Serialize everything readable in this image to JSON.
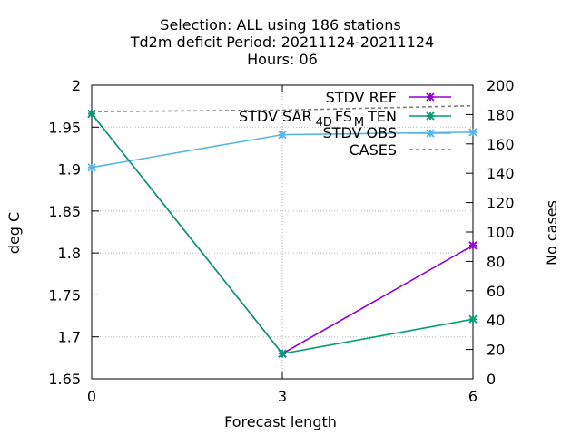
{
  "chart_data": {
    "type": "line",
    "title_lines": [
      "Selection: ALL using   186 stations",
      "Td2m deficit   Period: 20211124-20211124",
      "Hours:  06"
    ],
    "xlabel": "Forecast length",
    "ylabel": "deg C",
    "y2label": "No cases",
    "x": [
      0,
      3,
      6
    ],
    "xticks": [
      "0",
      "3",
      "6"
    ],
    "xlim": [
      0,
      6
    ],
    "ylim": [
      1.65,
      2.0
    ],
    "yticks": [
      "1.65",
      "1.7",
      "1.75",
      "1.8",
      "1.85",
      "1.9",
      "1.95",
      "2"
    ],
    "y2lim": [
      0,
      200
    ],
    "y2ticks": [
      "0",
      "20",
      "40",
      "60",
      "80",
      "100",
      "120",
      "140",
      "160",
      "180",
      "200"
    ],
    "grid": true,
    "legend_position": "top-right",
    "series": [
      {
        "name": "STDV REF",
        "values": [
          1.966,
          1.68,
          1.809
        ],
        "color": "#9400d3",
        "marker": "cross-star",
        "axis": "y1",
        "dashed": false
      },
      {
        "name": "STDV SAR",
        "name_sub1": "4D",
        "name_mid": "FS",
        "name_sub2": "M",
        "name_end": "TEN",
        "values": [
          1.966,
          1.68,
          1.721
        ],
        "color": "#009e73",
        "marker": "cross-star",
        "axis": "y1",
        "dashed": false
      },
      {
        "name": "STDV OBS",
        "values": [
          1.902,
          1.941,
          1.944
        ],
        "color": "#56b4e9",
        "marker": "cross-star",
        "axis": "y1",
        "dashed": false
      },
      {
        "name": "CASES",
        "values": [
          182,
          183,
          186
        ],
        "color": "#808080",
        "marker": "none",
        "axis": "y2",
        "dashed": true
      }
    ]
  }
}
